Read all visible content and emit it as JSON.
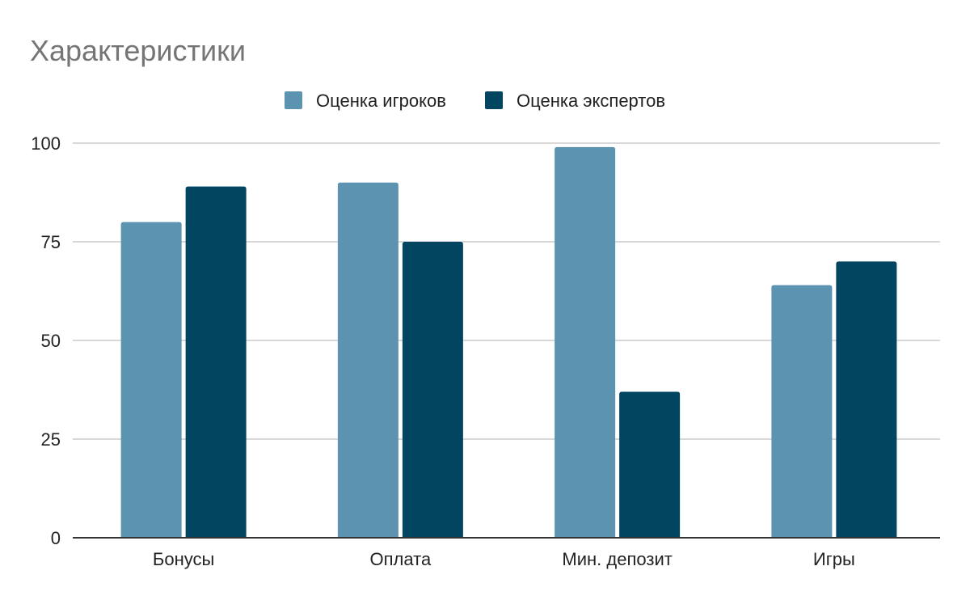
{
  "chart_data": {
    "type": "bar",
    "title": "Характеристики",
    "categories": [
      "Бонусы",
      "Оплата",
      "Мин. депозит",
      "Игры"
    ],
    "series": [
      {
        "name": "Оценка игроков",
        "color": "#5b93b0",
        "values": [
          80,
          90,
          99,
          64
        ]
      },
      {
        "name": "Оценка экспертов",
        "color": "#014560",
        "values": [
          89,
          75,
          37,
          70
        ]
      }
    ],
    "xlabel": "",
    "ylabel": "",
    "ylim": [
      0,
      100
    ],
    "yticks": [
      0,
      25,
      50,
      75,
      100
    ],
    "grid": true,
    "legend_position": "top-center"
  }
}
